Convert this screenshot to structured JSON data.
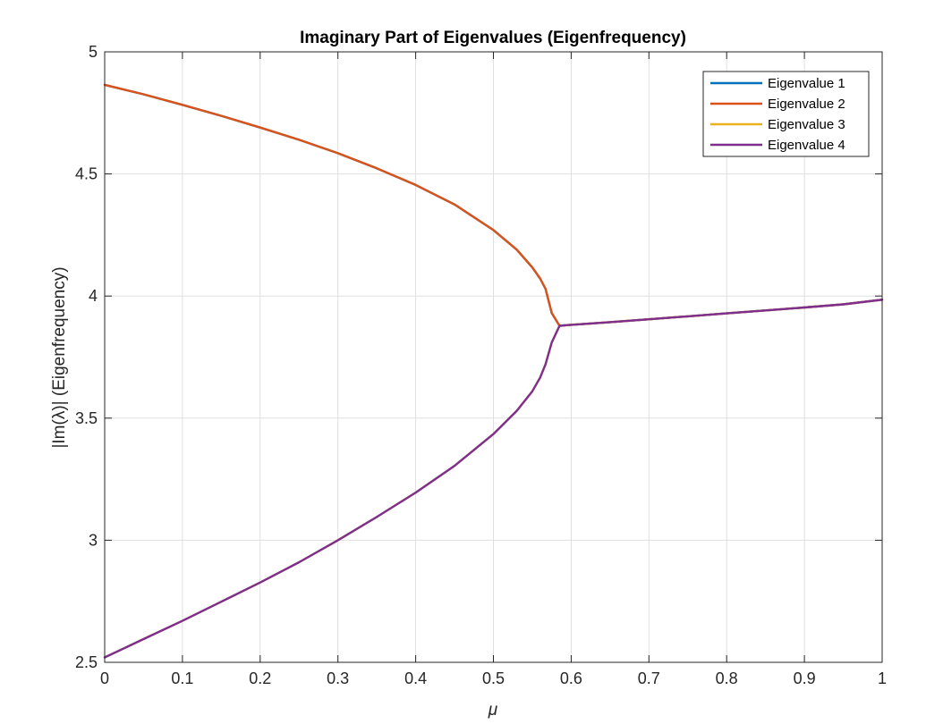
{
  "chart_data": {
    "type": "line",
    "title": "Imaginary Part of Eigenvalues (Eigenfrequency)",
    "xlabel": "μ",
    "ylabel": "|Im(λ)| (Eigenfrequency)",
    "xlim": [
      0,
      1
    ],
    "ylim": [
      2.5,
      5
    ],
    "xticks": [
      "0",
      "0.1",
      "0.2",
      "0.3",
      "0.4",
      "0.5",
      "0.6",
      "0.7",
      "0.8",
      "0.9",
      "1"
    ],
    "yticks": [
      "2.5",
      "3",
      "3.5",
      "4",
      "4.5",
      "5"
    ],
    "grid": true,
    "legend_position": "top-right",
    "series": [
      {
        "name": "Eigenvalue 1",
        "color": "#0072BD",
        "x": [
          0,
          0.05,
          0.1,
          0.15,
          0.2,
          0.25,
          0.3,
          0.35,
          0.4,
          0.45,
          0.5,
          0.53,
          0.55,
          0.56,
          0.567,
          0.575,
          0.585,
          0.6,
          0.65,
          0.7,
          0.75,
          0.8,
          0.85,
          0.9,
          0.95,
          1.0
        ],
        "y": [
          4.865,
          4.826,
          4.783,
          4.738,
          4.69,
          4.64,
          4.585,
          4.523,
          4.455,
          4.375,
          4.27,
          4.19,
          4.117,
          4.072,
          4.03,
          3.93,
          3.878,
          3.882,
          3.893,
          3.905,
          3.917,
          3.929,
          3.941,
          3.953,
          3.966,
          3.985
        ]
      },
      {
        "name": "Eigenvalue 2",
        "color": "#D95319",
        "x": [
          0,
          0.05,
          0.1,
          0.15,
          0.2,
          0.25,
          0.3,
          0.35,
          0.4,
          0.45,
          0.5,
          0.53,
          0.55,
          0.56,
          0.567,
          0.575,
          0.585,
          0.6,
          0.65,
          0.7,
          0.75,
          0.8,
          0.85,
          0.9,
          0.95,
          1.0
        ],
        "y": [
          4.865,
          4.826,
          4.783,
          4.738,
          4.69,
          4.64,
          4.585,
          4.523,
          4.455,
          4.375,
          4.27,
          4.19,
          4.117,
          4.072,
          4.03,
          3.93,
          3.878,
          3.882,
          3.893,
          3.905,
          3.917,
          3.929,
          3.941,
          3.953,
          3.966,
          3.985
        ]
      },
      {
        "name": "Eigenvalue 3",
        "color": "#EDB120",
        "x": [
          0,
          0.05,
          0.1,
          0.15,
          0.2,
          0.25,
          0.3,
          0.35,
          0.4,
          0.45,
          0.5,
          0.53,
          0.55,
          0.56,
          0.567,
          0.575,
          0.585,
          0.6,
          0.65,
          0.7,
          0.75,
          0.8,
          0.85,
          0.9,
          0.95,
          1.0
        ],
        "y": [
          2.52,
          2.595,
          2.67,
          2.748,
          2.827,
          2.91,
          3.0,
          3.095,
          3.195,
          3.305,
          3.435,
          3.53,
          3.61,
          3.665,
          3.72,
          3.81,
          3.878,
          3.882,
          3.893,
          3.905,
          3.917,
          3.929,
          3.941,
          3.953,
          3.966,
          3.985
        ]
      },
      {
        "name": "Eigenvalue 4",
        "color": "#7E2F8E",
        "x": [
          0,
          0.05,
          0.1,
          0.15,
          0.2,
          0.25,
          0.3,
          0.35,
          0.4,
          0.45,
          0.5,
          0.53,
          0.55,
          0.56,
          0.567,
          0.575,
          0.585,
          0.6,
          0.65,
          0.7,
          0.75,
          0.8,
          0.85,
          0.9,
          0.95,
          1.0
        ],
        "y": [
          2.52,
          2.595,
          2.67,
          2.748,
          2.827,
          2.91,
          3.0,
          3.095,
          3.195,
          3.305,
          3.435,
          3.53,
          3.61,
          3.665,
          3.72,
          3.81,
          3.878,
          3.882,
          3.893,
          3.905,
          3.917,
          3.929,
          3.941,
          3.953,
          3.966,
          3.985
        ]
      }
    ]
  }
}
